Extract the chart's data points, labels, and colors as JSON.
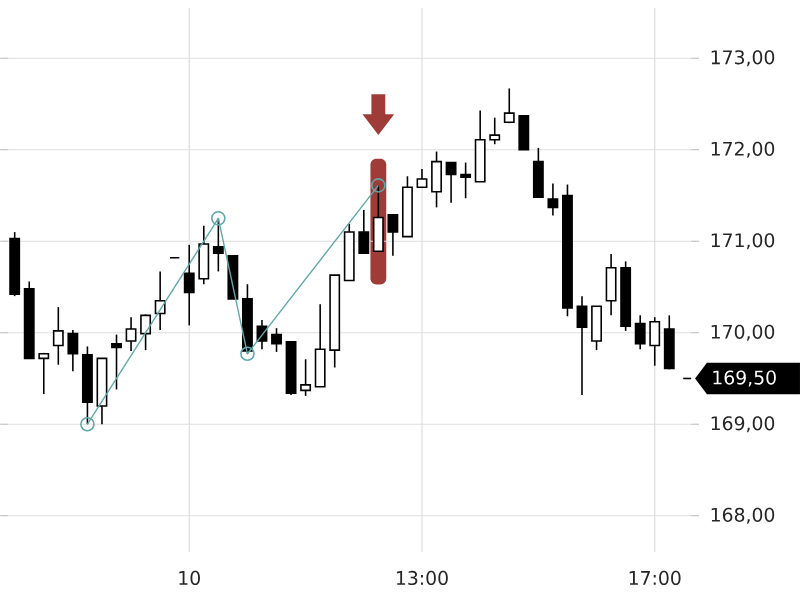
{
  "chart_data": {
    "type": "candlestick",
    "categories": [
      null,
      null,
      null,
      null,
      null,
      null,
      null,
      null,
      null,
      null,
      null,
      null,
      "10",
      null,
      null,
      null,
      null,
      null,
      null,
      null,
      null,
      null,
      null,
      null,
      null,
      null,
      null,
      null,
      "13:00",
      null,
      null,
      null,
      null,
      null,
      null,
      null,
      null,
      null,
      null,
      null,
      null,
      null,
      null,
      null,
      "17:00",
      null
    ],
    "ohlc": [
      [
        171.03,
        171.1,
        170.4,
        170.42
      ],
      [
        170.48,
        170.56,
        169.72,
        169.72
      ],
      [
        169.72,
        169.78,
        169.33,
        169.77
      ],
      [
        169.86,
        170.28,
        169.65,
        170.02
      ],
      [
        169.99,
        170.03,
        169.58,
        169.77
      ],
      [
        169.76,
        169.85,
        169.0,
        169.24
      ],
      [
        169.2,
        169.72,
        169.0,
        169.72
      ],
      [
        169.88,
        169.98,
        169.38,
        169.84
      ],
      [
        169.91,
        170.17,
        169.8,
        170.04
      ],
      [
        169.99,
        170.2,
        169.81,
        170.19
      ],
      [
        170.21,
        170.67,
        170.03,
        170.35
      ],
      [
        170.82,
        170.82,
        170.82,
        170.82
      ],
      [
        170.65,
        170.96,
        170.08,
        170.44
      ],
      [
        170.59,
        171.17,
        170.53,
        170.97
      ],
      [
        170.94,
        171.25,
        170.67,
        170.87
      ],
      [
        170.84,
        170.84,
        170.37,
        170.37
      ],
      [
        170.37,
        170.53,
        169.77,
        169.8
      ],
      [
        170.07,
        170.14,
        169.82,
        169.91
      ],
      [
        169.98,
        170.05,
        169.79,
        169.88
      ],
      [
        169.9,
        169.9,
        169.32,
        169.34
      ],
      [
        169.37,
        169.71,
        169.31,
        169.43
      ],
      [
        169.41,
        170.31,
        169.41,
        169.82
      ],
      [
        169.81,
        170.63,
        169.62,
        170.63
      ],
      [
        170.57,
        171.19,
        170.57,
        171.1
      ],
      [
        171.1,
        171.34,
        170.87,
        170.87
      ],
      [
        170.89,
        171.61,
        170.89,
        171.26
      ],
      [
        171.29,
        171.29,
        170.84,
        171.1
      ],
      [
        171.05,
        171.71,
        171.05,
        171.59
      ],
      [
        171.59,
        171.79,
        171.59,
        171.68
      ],
      [
        171.54,
        171.98,
        171.37,
        171.87
      ],
      [
        171.86,
        171.86,
        171.42,
        171.73
      ],
      [
        171.73,
        171.86,
        171.47,
        171.7
      ],
      [
        171.65,
        172.43,
        171.65,
        172.11
      ],
      [
        172.11,
        172.35,
        172.06,
        172.16
      ],
      [
        172.3,
        172.67,
        172.29,
        172.4
      ],
      [
        172.37,
        172.37,
        172.0,
        172.0
      ],
      [
        171.87,
        172.02,
        171.48,
        171.48
      ],
      [
        171.46,
        171.63,
        171.28,
        171.37
      ],
      [
        171.5,
        171.62,
        170.18,
        170.27
      ],
      [
        170.29,
        170.4,
        169.32,
        170.06
      ],
      [
        169.91,
        170.29,
        169.81,
        170.29
      ],
      [
        170.35,
        170.86,
        170.19,
        170.71
      ],
      [
        170.71,
        170.78,
        170.02,
        170.07
      ],
      [
        170.1,
        170.19,
        169.82,
        169.88
      ],
      [
        169.86,
        170.17,
        169.64,
        170.12
      ],
      [
        170.04,
        170.19,
        169.6,
        169.61
      ]
    ],
    "series": [
      {
        "type": "line",
        "color": "#5fa8ab",
        "marker": "circle",
        "values": [
          null,
          null,
          null,
          null,
          null,
          169.0,
          null,
          null,
          null,
          null,
          null,
          null,
          null,
          null,
          171.25,
          null,
          169.77,
          null,
          null,
          null,
          null,
          null,
          null,
          null,
          null,
          171.61,
          null,
          null,
          null,
          null,
          null,
          null,
          null,
          null,
          null,
          null,
          null,
          null,
          null,
          null,
          null,
          null,
          null,
          null,
          null,
          null
        ]
      }
    ],
    "ylim": [
      167.6,
      173.55
    ],
    "yticks": [
      {
        "value": 168,
        "label": "168,00"
      },
      {
        "value": 169,
        "label": "169,00"
      },
      {
        "value": 170,
        "label": "170,00"
      },
      {
        "value": 171,
        "label": "171,00"
      },
      {
        "value": 172,
        "label": "172,00"
      },
      {
        "value": 173,
        "label": "173,00"
      }
    ],
    "ref_lines": [
      {
        "axis": "y",
        "value": 169.5,
        "label": "169,50"
      }
    ],
    "grid": true
  }
}
